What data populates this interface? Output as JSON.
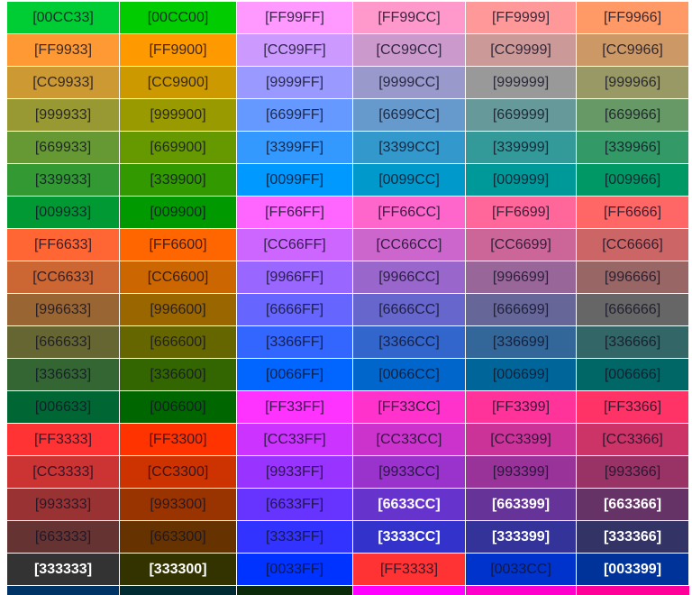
{
  "table": {
    "rows": [
      [
        {
          "label": "[00CC33]",
          "bg": "#00CC33"
        },
        {
          "label": "[00CC00]",
          "bg": "#00CC00"
        },
        {
          "label": "[FF99FF]",
          "bg": "#FF99FF"
        },
        {
          "label": "[FF99CC]",
          "bg": "#FF99CC"
        },
        {
          "label": "[FF9999]",
          "bg": "#FF9999"
        },
        {
          "label": "[FF9966]",
          "bg": "#FF9966"
        }
      ],
      [
        {
          "label": "[FF9933]",
          "bg": "#FF9933"
        },
        {
          "label": "[FF9900]",
          "bg": "#FF9900"
        },
        {
          "label": "[CC99FF]",
          "bg": "#CC99FF"
        },
        {
          "label": "[CC99CC]",
          "bg": "#CC99CC"
        },
        {
          "label": "[CC9999]",
          "bg": "#CC9999"
        },
        {
          "label": "[CC9966]",
          "bg": "#CC9966"
        }
      ],
      [
        {
          "label": "[CC9933]",
          "bg": "#CC9933"
        },
        {
          "label": "[CC9900]",
          "bg": "#CC9900"
        },
        {
          "label": "[9999FF]",
          "bg": "#9999FF"
        },
        {
          "label": "[9999CC]",
          "bg": "#9999CC"
        },
        {
          "label": "[999999]",
          "bg": "#999999"
        },
        {
          "label": "[999966]",
          "bg": "#999966"
        }
      ],
      [
        {
          "label": "[999933]",
          "bg": "#999933"
        },
        {
          "label": "[999900]",
          "bg": "#999900"
        },
        {
          "label": "[6699FF]",
          "bg": "#6699FF"
        },
        {
          "label": "[6699CC]",
          "bg": "#6699CC"
        },
        {
          "label": "[669999]",
          "bg": "#669999"
        },
        {
          "label": "[669966]",
          "bg": "#669966"
        }
      ],
      [
        {
          "label": "[669933]",
          "bg": "#669933"
        },
        {
          "label": "[669900]",
          "bg": "#669900"
        },
        {
          "label": "[3399FF]",
          "bg": "#3399FF"
        },
        {
          "label": "[3399CC]",
          "bg": "#3399CC"
        },
        {
          "label": "[339999]",
          "bg": "#339999"
        },
        {
          "label": "[339966]",
          "bg": "#339966"
        }
      ],
      [
        {
          "label": "[339933]",
          "bg": "#339933"
        },
        {
          "label": "[339900]",
          "bg": "#339900"
        },
        {
          "label": "[0099FF]",
          "bg": "#0099FF"
        },
        {
          "label": "[0099CC]",
          "bg": "#0099CC"
        },
        {
          "label": "[009999]",
          "bg": "#009999"
        },
        {
          "label": "[009966]",
          "bg": "#009966"
        }
      ],
      [
        {
          "label": "[009933]",
          "bg": "#009933"
        },
        {
          "label": "[009900]",
          "bg": "#009900"
        },
        {
          "label": "[FF66FF]",
          "bg": "#FF66FF"
        },
        {
          "label": "[FF66CC]",
          "bg": "#FF66CC"
        },
        {
          "label": "[FF6699]",
          "bg": "#FF6699"
        },
        {
          "label": "[FF6666]",
          "bg": "#FF6666"
        }
      ],
      [
        {
          "label": "[FF6633]",
          "bg": "#FF6633"
        },
        {
          "label": "[FF6600]",
          "bg": "#FF6600"
        },
        {
          "label": "[CC66FF]",
          "bg": "#CC66FF"
        },
        {
          "label": "[CC66CC]",
          "bg": "#CC66CC"
        },
        {
          "label": "[CC6699]",
          "bg": "#CC6699"
        },
        {
          "label": "[CC6666]",
          "bg": "#CC6666"
        }
      ],
      [
        {
          "label": "[CC6633]",
          "bg": "#CC6633"
        },
        {
          "label": "[CC6600]",
          "bg": "#CC6600"
        },
        {
          "label": "[9966FF]",
          "bg": "#9966FF"
        },
        {
          "label": "[9966CC]",
          "bg": "#9966CC"
        },
        {
          "label": "[996699]",
          "bg": "#996699"
        },
        {
          "label": "[996666]",
          "bg": "#996666"
        }
      ],
      [
        {
          "label": "[996633]",
          "bg": "#996633"
        },
        {
          "label": "[996600]",
          "bg": "#996600"
        },
        {
          "label": "[6666FF]",
          "bg": "#6666FF"
        },
        {
          "label": "[6666CC]",
          "bg": "#6666CC"
        },
        {
          "label": "[666699]",
          "bg": "#666699"
        },
        {
          "label": "[666666]",
          "bg": "#666666"
        }
      ],
      [
        {
          "label": "[666633]",
          "bg": "#666633"
        },
        {
          "label": "[666600]",
          "bg": "#666600"
        },
        {
          "label": "[3366FF]",
          "bg": "#3366FF"
        },
        {
          "label": "[3366CC]",
          "bg": "#3366CC"
        },
        {
          "label": "[336699]",
          "bg": "#336699"
        },
        {
          "label": "[336666]",
          "bg": "#336666"
        }
      ],
      [
        {
          "label": "[336633]",
          "bg": "#336633"
        },
        {
          "label": "[336600]",
          "bg": "#336600"
        },
        {
          "label": "[0066FF]",
          "bg": "#0066FF"
        },
        {
          "label": "[0066CC]",
          "bg": "#0066CC"
        },
        {
          "label": "[006699]",
          "bg": "#006699"
        },
        {
          "label": "[006666]",
          "bg": "#006666"
        }
      ],
      [
        {
          "label": "[006633]",
          "bg": "#006633"
        },
        {
          "label": "[006600]",
          "bg": "#006600"
        },
        {
          "label": "[FF33FF]",
          "bg": "#FF33FF"
        },
        {
          "label": "[FF33CC]",
          "bg": "#FF33CC"
        },
        {
          "label": "[FF3399]",
          "bg": "#FF3399"
        },
        {
          "label": "[FF3366]",
          "bg": "#FF3366"
        }
      ],
      [
        {
          "label": "[FF3333]",
          "bg": "#FF3333"
        },
        {
          "label": "[FF3300]",
          "bg": "#FF3300"
        },
        {
          "label": "[CC33FF]",
          "bg": "#CC33FF"
        },
        {
          "label": "[CC33CC]",
          "bg": "#CC33CC"
        },
        {
          "label": "[CC3399]",
          "bg": "#CC3399"
        },
        {
          "label": "[CC3366]",
          "bg": "#CC3366"
        }
      ],
      [
        {
          "label": "[CC3333]",
          "bg": "#CC3333"
        },
        {
          "label": "[CC3300]",
          "bg": "#CC3300"
        },
        {
          "label": "[9933FF]",
          "bg": "#9933FF"
        },
        {
          "label": "[9933CC]",
          "bg": "#9933CC"
        },
        {
          "label": "[993399]",
          "bg": "#993399"
        },
        {
          "label": "[993366]",
          "bg": "#993366"
        }
      ],
      [
        {
          "label": "[993333]",
          "bg": "#993333"
        },
        {
          "label": "[993300]",
          "bg": "#993300"
        },
        {
          "label": "[6633FF]",
          "bg": "#6633FF"
        },
        {
          "label": "[6633CC]",
          "bg": "#6633CC",
          "fg": "#ffffff"
        },
        {
          "label": "[663399]",
          "bg": "#663399",
          "fg": "#ffffff"
        },
        {
          "label": "[663366]",
          "bg": "#663366",
          "fg": "#ffffff"
        }
      ],
      [
        {
          "label": "[663333]",
          "bg": "#663333"
        },
        {
          "label": "[663300]",
          "bg": "#663300"
        },
        {
          "label": "[3333FF]",
          "bg": "#3333FF"
        },
        {
          "label": "[3333CC]",
          "bg": "#3333CC",
          "fg": "#ffffff"
        },
        {
          "label": "[333399]",
          "bg": "#333399",
          "fg": "#ffffff"
        },
        {
          "label": "[333366]",
          "bg": "#333366",
          "fg": "#ffffff"
        }
      ],
      [
        {
          "label": "[333333]",
          "bg": "#333333",
          "fg": "#ffffff"
        },
        {
          "label": "[333300]",
          "bg": "#333300",
          "fg": "#ffffff"
        },
        {
          "label": "[0033FF]",
          "bg": "#0033FF"
        },
        {
          "label": "[FF3333]",
          "bg": "#FF3333"
        },
        {
          "label": "[0033CC]",
          "bg": "#0033CC"
        },
        {
          "label": "[003399]",
          "bg": "#003399",
          "fg": "#ffffff"
        }
      ]
    ]
  }
}
